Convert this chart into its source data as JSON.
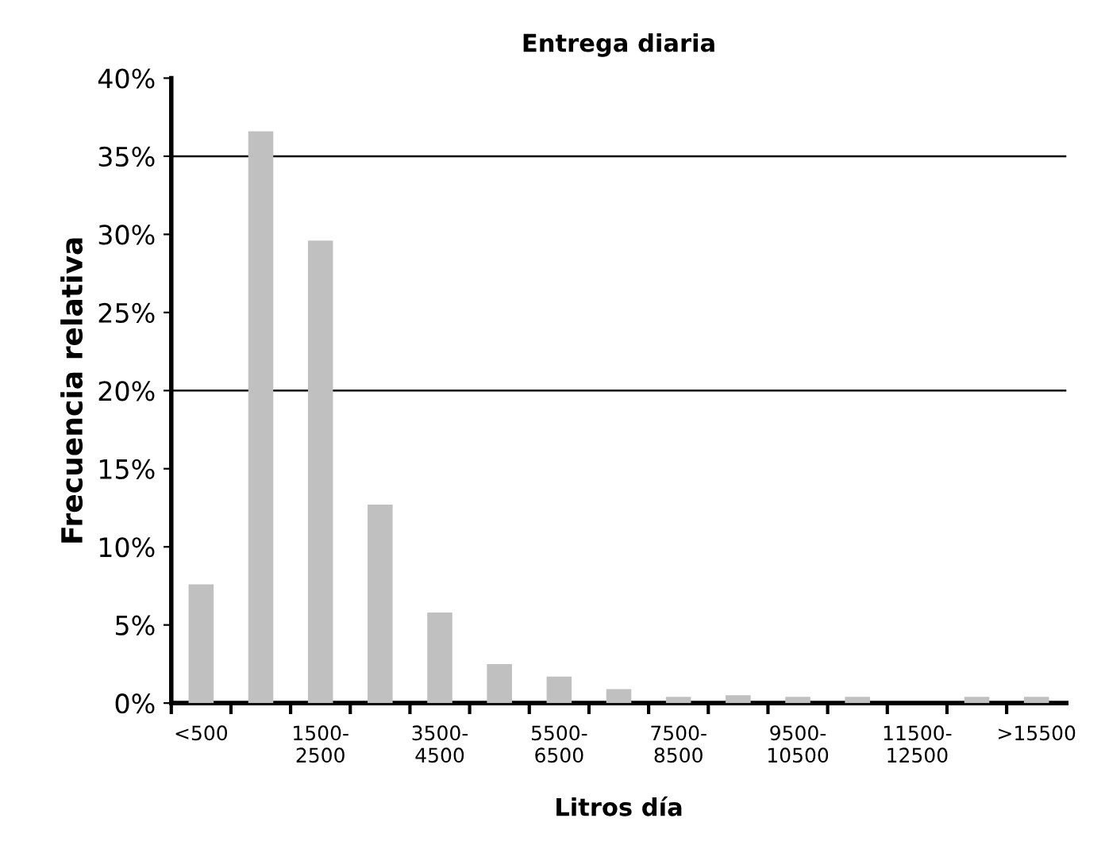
{
  "chart_data": {
    "type": "bar",
    "title": "Entrega diaria",
    "xlabel": "Litros día",
    "ylabel": "Frecuencia relativa",
    "categories": [
      "<500",
      null,
      "1500-\n2500",
      null,
      "3500-\n4500",
      null,
      "5500-\n6500",
      null,
      "7500-\n8500",
      null,
      "9500-\n10500",
      null,
      "11500-\n12500",
      null,
      ">15500"
    ],
    "values": [
      7.6,
      36.6,
      29.6,
      12.7,
      5.8,
      2.5,
      1.7,
      0.9,
      0.4,
      0.5,
      0.4,
      0.4,
      0,
      0.4,
      0.4
    ],
    "color": "#c0c0c0",
    "ylim": [
      0,
      40
    ],
    "yticks": [
      {
        "value": 0,
        "label": "0%"
      },
      {
        "value": 5,
        "label": "5%"
      },
      {
        "value": 10,
        "label": "10%"
      },
      {
        "value": 15,
        "label": "15%"
      },
      {
        "value": 20,
        "label": "20%"
      },
      {
        "value": 25,
        "label": "25%"
      },
      {
        "value": 30,
        "label": "30%"
      },
      {
        "value": 35,
        "label": "35%"
      },
      {
        "value": 40,
        "label": "40%"
      }
    ],
    "ref_lines": [
      {
        "axis": "y",
        "value": 20,
        "color": "#000000"
      },
      {
        "axis": "y",
        "value": 35,
        "color": "#000000"
      }
    ],
    "grid": false,
    "legend": false
  }
}
